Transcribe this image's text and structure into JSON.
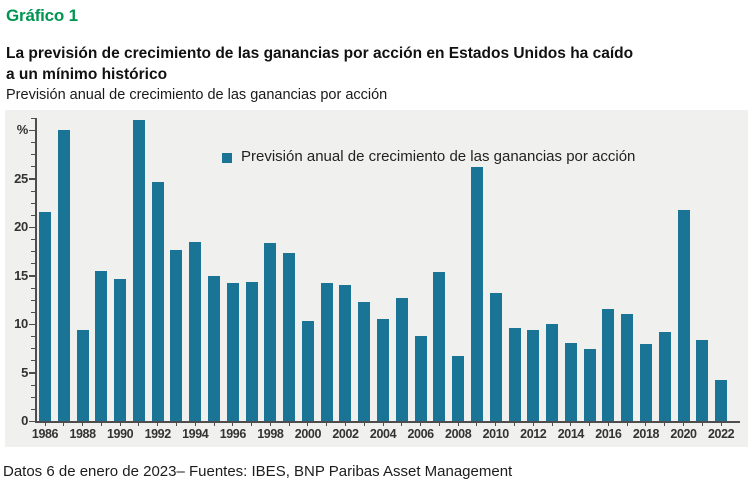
{
  "header": {
    "chart_label": "Gráfico 1"
  },
  "title_lines": [
    "La previsión de crecimiento de las ganancias por acción en Estados Unidos ha caído",
    "a un mínimo histórico"
  ],
  "subtitle": "Previsión anual de crecimiento de las ganancias por acción",
  "footer": "Datos 6 de enero de 2023– Fuentes: IBES, BNP Paribas Asset Management",
  "colors": {
    "accent_green": "#009551",
    "bar": "#1a7496",
    "plot_bg": "#f0f0ee",
    "axis": "#4d4d4d"
  },
  "chart_data": {
    "type": "bar",
    "title": "Previsión anual de crecimiento de las ganancias por acción",
    "unit_label": "%",
    "x": [
      1986,
      1987,
      1988,
      1989,
      1990,
      1991,
      1992,
      1993,
      1994,
      1995,
      1996,
      1997,
      1998,
      1999,
      2000,
      2001,
      2002,
      2003,
      2004,
      2005,
      2006,
      2007,
      2008,
      2009,
      2010,
      2011,
      2012,
      2013,
      2014,
      2015,
      2016,
      2017,
      2018,
      2019,
      2020,
      2021,
      2022
    ],
    "values": [
      21.5,
      30.0,
      9.4,
      15.5,
      14.6,
      31.0,
      24.6,
      17.6,
      18.5,
      14.9,
      14.2,
      14.3,
      18.4,
      17.3,
      10.3,
      14.2,
      14.0,
      12.3,
      10.5,
      12.7,
      8.8,
      15.4,
      6.7,
      26.2,
      13.2,
      9.6,
      9.4,
      10.0,
      8.0,
      7.4,
      11.5,
      11.0,
      7.9,
      9.2,
      21.8,
      8.4,
      4.2
    ],
    "legend": "Previsión anual de crecimiento de las ganancias por acción",
    "legend_position": "top-center-inside",
    "ylim": [
      0,
      32
    ],
    "yticks": [
      0,
      5,
      10,
      15,
      20,
      25,
      30
    ],
    "ytick_top_label": "%",
    "xtick_labels": [
      1986,
      1988,
      1990,
      1992,
      1994,
      1996,
      1998,
      2000,
      2002,
      2004,
      2006,
      2008,
      2010,
      2012,
      2014,
      2016,
      2018,
      2020,
      2022
    ],
    "grid": false
  }
}
